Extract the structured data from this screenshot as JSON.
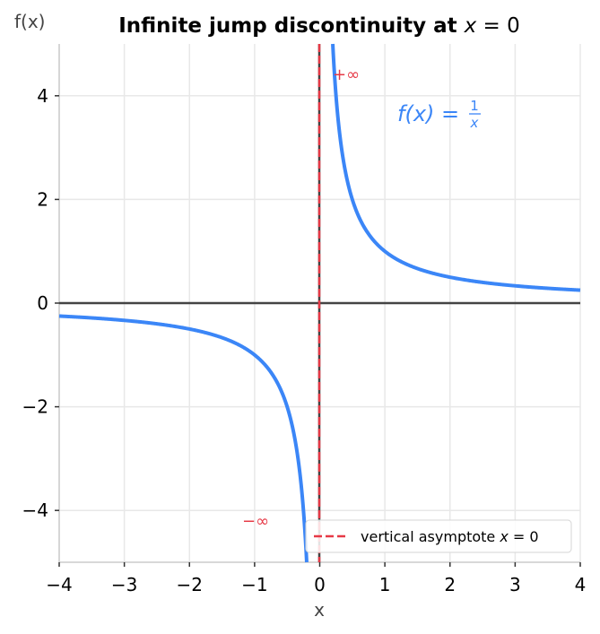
{
  "chart_data": {
    "type": "line",
    "title": "Infinite jump discontinuity at x = 0",
    "title_text": "Infinite jump discontinuity at ",
    "title_math_var": "x",
    "title_math_rest": " = 0",
    "xlabel": "x",
    "ylabel": "f(x)",
    "xlim": [
      -4,
      4
    ],
    "ylim": [
      -5,
      5
    ],
    "xticks": [
      -4,
      -3,
      -2,
      -1,
      0,
      1,
      2,
      3,
      4
    ],
    "xtick_labels": [
      "−4",
      "−3",
      "−2",
      "−1",
      "0",
      "1",
      "2",
      "3",
      "4"
    ],
    "yticks": [
      -4,
      -2,
      0,
      2,
      4
    ],
    "ytick_labels": [
      "−4",
      "−2",
      "0",
      "2",
      "4"
    ],
    "grid": true,
    "series": [
      {
        "name": "f(x) = 1/x",
        "color": "#3b86f7",
        "function": "1/x",
        "domain": "x != 0",
        "x": [
          -4,
          -3,
          -2,
          -1,
          -0.5,
          -0.25,
          -0.2,
          0.2,
          0.25,
          0.5,
          1,
          2,
          3,
          4
        ],
        "y": [
          -0.25,
          -0.333,
          -0.5,
          -1,
          -2,
          -4,
          -5,
          5,
          4,
          2,
          1,
          0.5,
          0.333,
          0.25
        ]
      }
    ],
    "reference_lines": [
      {
        "type": "vertical",
        "x": 0,
        "label": "vertical asymptote x = 0",
        "color": "#e63946",
        "style": "dashed"
      },
      {
        "type": "horizontal",
        "y": 0,
        "color": "#444444",
        "style": "solid"
      }
    ],
    "annotations": [
      {
        "text": "+∞",
        "x": 0.22,
        "y": 4.4,
        "color": "#e63946"
      },
      {
        "text": "−∞",
        "x": -1.15,
        "y": -4.2,
        "color": "#e63946"
      },
      {
        "text": "f(x) = 1/x",
        "x": 1.2,
        "y": 3.6,
        "color": "#3b86f7"
      }
    ],
    "legend": {
      "position": "lower right",
      "entries": [
        {
          "label_text": "vertical asymptote ",
          "label_var": "x",
          "label_rest": " = 0",
          "color": "#e63946",
          "style": "dashed"
        }
      ]
    }
  },
  "labels": {
    "plus_inf": "+∞",
    "minus_inf": "−∞",
    "func_lhs": "f(x) = ",
    "func_num": "1",
    "func_den": "x"
  },
  "colors": {
    "curve": "#3b86f7",
    "asymptote": "#e63946",
    "zero_line": "#444444",
    "grid": "#e8e8e8",
    "spine": "#cccccc"
  }
}
